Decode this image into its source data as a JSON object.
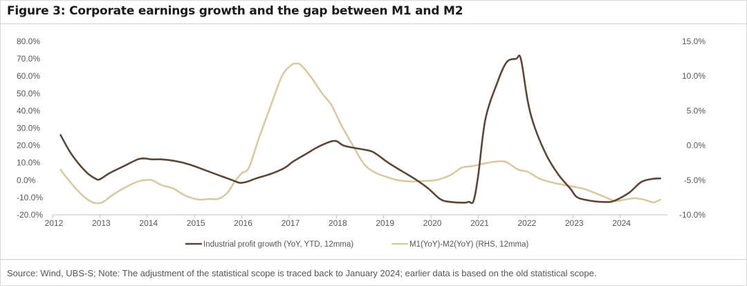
{
  "title": "Figure 3: Corporate earnings growth and the gap between M1 and M2",
  "source": "Source: Wind, UBS-S; Note: The adjustment of the statistical scope is traced back to January 2024; earlier data is based on the old statistical scope.",
  "chart_data": {
    "type": "line",
    "title": "Figure 3: Corporate earnings growth and the gap between M1 and M2",
    "xlabel": "",
    "ylabel": "",
    "x_ticks": [
      "2012",
      "2013",
      "2014",
      "2015",
      "2016",
      "2017",
      "2018",
      "2019",
      "2020",
      "2021",
      "2022",
      "2023",
      "2024"
    ],
    "xlim": [
      2012.0,
      2025.0
    ],
    "y_left": {
      "lim": [
        -20,
        80
      ],
      "ticks": [
        "80.0%",
        "70.0%",
        "60.0%",
        "50.0%",
        "40.0%",
        "30.0%",
        "20.0%",
        "10.0%",
        "0.0%",
        "-10.0%",
        "-20.0%"
      ]
    },
    "y_right": {
      "lim": [
        -10,
        15
      ],
      "ticks": [
        "15.0%",
        "10.0%",
        "5.0%",
        "0.0%",
        "-5.0%",
        "-10.0%"
      ]
    },
    "grid": false,
    "legend_position": "bottom",
    "series": [
      {
        "name": "Industrial profit growth (YoY, YTD, 12mma)",
        "axis": "left",
        "color": "#5b4636",
        "x": [
          2012.17,
          2012.4,
          2012.7,
          2012.9,
          2013.0,
          2013.2,
          2013.5,
          2013.8,
          2013.95,
          2014.1,
          2014.3,
          2014.6,
          2014.9,
          2015.2,
          2015.5,
          2015.8,
          2015.95,
          2016.1,
          2016.3,
          2016.6,
          2016.9,
          2017.1,
          2017.35,
          2017.6,
          2017.85,
          2018.0,
          2018.15,
          2018.4,
          2018.7,
          2018.85,
          2019.1,
          2019.4,
          2019.7,
          2019.95,
          2020.2,
          2020.4,
          2020.7,
          2020.8,
          2020.9,
          2021.0,
          2021.15,
          2021.4,
          2021.6,
          2021.8,
          2021.9,
          2022.05,
          2022.2,
          2022.45,
          2022.7,
          2022.95,
          2023.1,
          2023.4,
          2023.6,
          2023.8,
          2023.95,
          2024.2,
          2024.45,
          2024.7,
          2024.85
        ],
        "y": [
          26,
          15,
          5,
          1,
          0.5,
          4,
          8,
          12,
          12.5,
          12,
          12,
          11,
          9,
          6,
          3,
          0,
          -1.5,
          -1,
          1,
          3.5,
          7,
          11,
          15,
          19,
          22,
          22.5,
          20,
          18.5,
          17,
          15,
          10,
          5,
          0,
          -5,
          -11,
          -12.5,
          -13,
          -12.5,
          -12,
          3,
          35,
          56,
          68,
          70,
          70,
          45,
          30,
          14,
          3,
          -5,
          -10,
          -12,
          -12.5,
          -12.5,
          -11,
          -7,
          -1,
          0.8,
          1
        ]
      },
      {
        "name": "M1(YoY)-M2(YoY) (RHS, 12mma)",
        "axis": "right",
        "color": "#d8c9a3",
        "x": [
          2012.17,
          2012.4,
          2012.65,
          2012.85,
          2013.0,
          2013.1,
          2013.3,
          2013.55,
          2013.8,
          2013.95,
          2014.1,
          2014.3,
          2014.55,
          2014.8,
          2015.1,
          2015.3,
          2015.5,
          2015.7,
          2015.85,
          2016.0,
          2016.15,
          2016.35,
          2016.6,
          2016.85,
          2017.05,
          2017.15,
          2017.25,
          2017.45,
          2017.7,
          2017.9,
          2018.1,
          2018.35,
          2018.6,
          2018.85,
          2019.05,
          2019.3,
          2019.6,
          2019.85,
          2020.1,
          2020.4,
          2020.65,
          2020.85,
          2021.0,
          2021.2,
          2021.4,
          2021.55,
          2021.65,
          2021.85,
          2022.05,
          2022.3,
          2022.6,
          2022.9,
          2023.2,
          2023.45,
          2023.7,
          2023.9,
          2024.1,
          2024.3,
          2024.5,
          2024.7,
          2024.85
        ],
        "y": [
          -3.5,
          -5.5,
          -7.3,
          -8.2,
          -8.3,
          -8.0,
          -7.0,
          -6.0,
          -5.2,
          -5.0,
          -5.0,
          -5.7,
          -6.2,
          -7.2,
          -7.8,
          -7.7,
          -7.7,
          -6.8,
          -5.2,
          -4.0,
          -3.2,
          0.8,
          5.5,
          10.0,
          11.6,
          11.8,
          11.6,
          10.0,
          7.5,
          5.8,
          3.0,
          0.0,
          -2.8,
          -4.0,
          -4.5,
          -5.0,
          -5.2,
          -5.1,
          -5.0,
          -4.3,
          -3.2,
          -3.0,
          -2.8,
          -2.5,
          -2.3,
          -2.3,
          -2.6,
          -3.5,
          -3.8,
          -4.8,
          -5.4,
          -5.8,
          -6.2,
          -6.8,
          -7.5,
          -8.0,
          -7.8,
          -7.6,
          -7.8,
          -8.2,
          -7.8
        ]
      }
    ]
  }
}
